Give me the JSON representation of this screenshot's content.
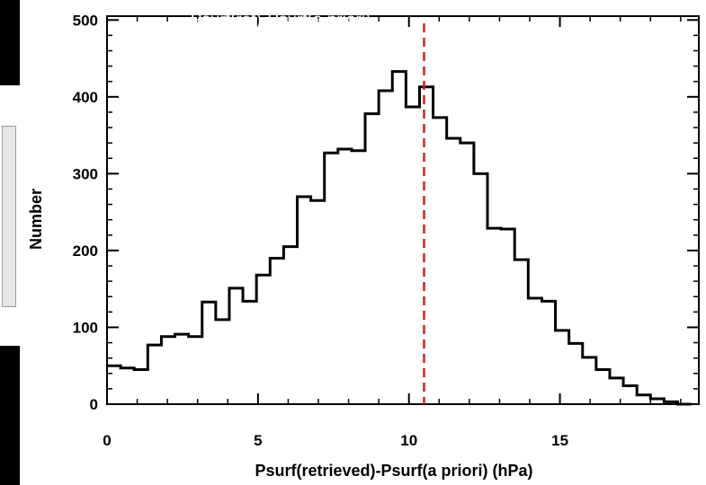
{
  "chart_data": {
    "type": "bar",
    "title": "Psurf(ret)-Psurf(a priori)",
    "xlabel": "Psurf(retrieved)-Psurf(a priori) (hPa)",
    "ylabel": "Number",
    "xlim": [
      0,
      19.6
    ],
    "ylim": [
      0,
      505
    ],
    "xticks": [
      0,
      5,
      10,
      15
    ],
    "yticks": [
      0,
      100,
      200,
      300,
      400,
      500
    ],
    "bin_width": 0.45,
    "x": [
      0,
      0.45,
      0.9,
      1.35,
      1.8,
      2.25,
      2.7,
      3.15,
      3.6,
      4.05,
      4.5,
      4.95,
      5.4,
      5.85,
      6.3,
      6.75,
      7.2,
      7.65,
      8.1,
      8.55,
      9.0,
      9.45,
      9.9,
      10.35,
      10.8,
      11.25,
      11.7,
      12.15,
      12.6,
      13.05,
      13.5,
      13.95,
      14.4,
      14.85,
      15.3,
      15.75,
      16.2,
      16.65,
      17.1,
      17.55,
      18.0,
      18.45,
      18.9
    ],
    "values": [
      50,
      47,
      45,
      77,
      88,
      91,
      88,
      133,
      110,
      151,
      134,
      168,
      190,
      205,
      270,
      265,
      327,
      332,
      330,
      378,
      408,
      433,
      387,
      413,
      373,
      346,
      340,
      300,
      229,
      228,
      188,
      138,
      134,
      96,
      79,
      61,
      45,
      34,
      24,
      12,
      7,
      3,
      0
    ],
    "reference_line": {
      "x": 10.5,
      "color": "#d42020",
      "style": "dashed"
    },
    "grid": false,
    "line_color": "#000000"
  }
}
